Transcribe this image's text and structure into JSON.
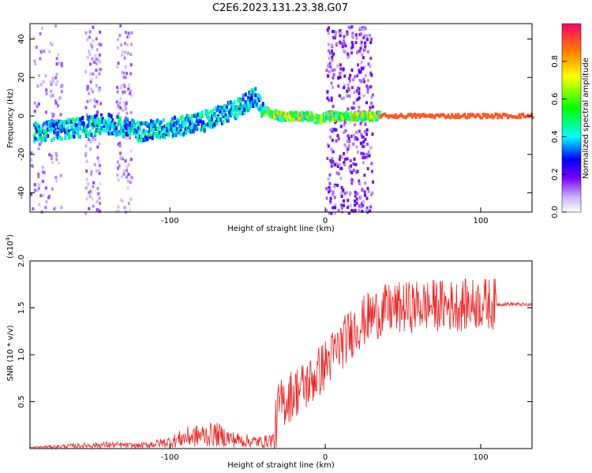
{
  "title": "C2E6.2023.131.23.38.G07",
  "chart_data": [
    {
      "type": "heatmap",
      "xlabel": "Height of straight line (km)",
      "ylabel": "Frequency (Hz)",
      "xlim": [
        -190,
        133
      ],
      "ylim": [
        -50,
        48
      ],
      "xticks": [
        -100,
        0,
        100
      ],
      "yticks": [
        -40,
        -20,
        0,
        20,
        40
      ],
      "colorbar": {
        "label": "Normalized spectral amplitude",
        "range": [
          0,
          1
        ],
        "ticks": [
          "0.0",
          "0.2",
          "0.4",
          "0.6",
          "0.8"
        ],
        "colormap": [
          "#ffffff",
          "#c8b4ff",
          "#7a00ff",
          "#0000ff",
          "#00ffff",
          "#00ff00",
          "#ffff00",
          "#ff8000",
          "#ff0066"
        ]
      },
      "ridge": {
        "x": [
          -180,
          -160,
          -140,
          -120,
          -100,
          -80,
          -60,
          -50,
          -45,
          -40,
          -30,
          -20,
          -10,
          -5,
          0,
          35,
          133
        ],
        "y": [
          -8,
          -6,
          -4,
          -8,
          -6,
          -3,
          3,
          8,
          10,
          3,
          0,
          0,
          0,
          -2,
          0,
          0,
          0
        ]
      },
      "noise_bands": [
        [
          -190,
          -170
        ],
        [
          -155,
          -145
        ],
        [
          -135,
          -125
        ],
        [
          0,
          30
        ]
      ]
    },
    {
      "type": "line",
      "xlabel": "Height of straight line (km)",
      "ylabel": "SNR (10 * v/v)",
      "y_scale_label": "(x10",
      "y_scale_exp": "4",
      "xlim": [
        -190,
        133
      ],
      "ylim": [
        0,
        2.0
      ],
      "xticks": [
        -100,
        0,
        100
      ],
      "yticks": [
        0.5,
        1.0,
        1.5,
        2.0
      ],
      "series": [
        {
          "color": "#ee2222",
          "x": [
            -190,
            -160,
            -140,
            -120,
            -100,
            -90,
            -80,
            -70,
            -60,
            -50,
            -40,
            -33,
            -30,
            -20,
            -10,
            0,
            10,
            20,
            30,
            40,
            50,
            60,
            70,
            80,
            90,
            100,
            110,
            120,
            133
          ],
          "y": [
            0.01,
            0.03,
            0.04,
            0.03,
            0.07,
            0.12,
            0.14,
            0.15,
            0.1,
            0.08,
            0.07,
            0.1,
            0.45,
            0.6,
            0.7,
            0.9,
            1.1,
            1.3,
            1.42,
            1.48,
            1.5,
            1.52,
            1.53,
            1.52,
            1.53,
            1.55,
            1.54,
            1.54,
            1.53
          ]
        }
      ]
    }
  ]
}
